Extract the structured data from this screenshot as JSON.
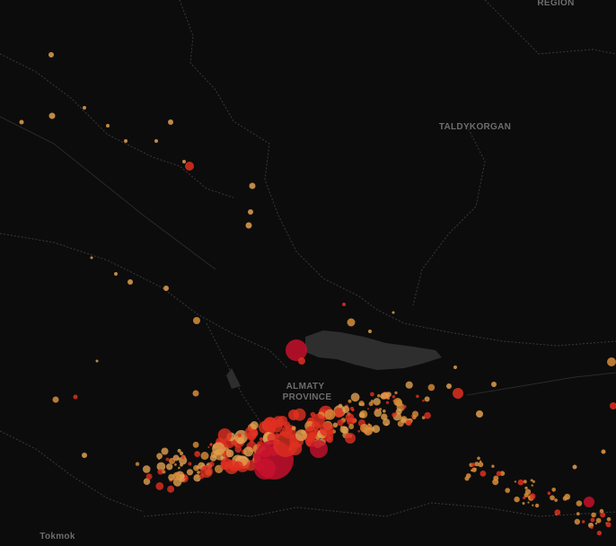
{
  "map": {
    "labels": {
      "region": "REGION",
      "city": "TALDYKORGAN",
      "province_line1": "ALMATY",
      "province_line2": "PROVINCE",
      "town": "Tokmok"
    }
  }
}
